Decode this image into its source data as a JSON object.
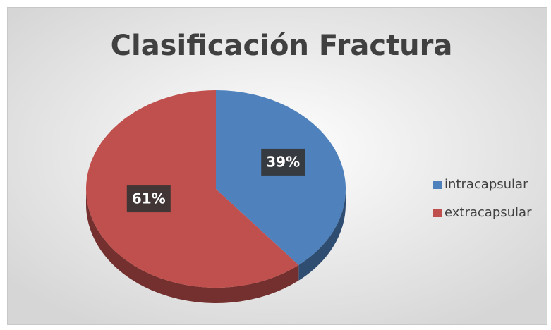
{
  "chart_data": {
    "type": "pie",
    "title": "Clasificación Fractura",
    "categories": [
      "intracapsular",
      "extracapsular"
    ],
    "values": [
      39,
      61
    ],
    "value_labels": [
      "39%",
      "61%"
    ],
    "colors": [
      "#4f81bd",
      "#c0504d"
    ],
    "legend": "right"
  }
}
